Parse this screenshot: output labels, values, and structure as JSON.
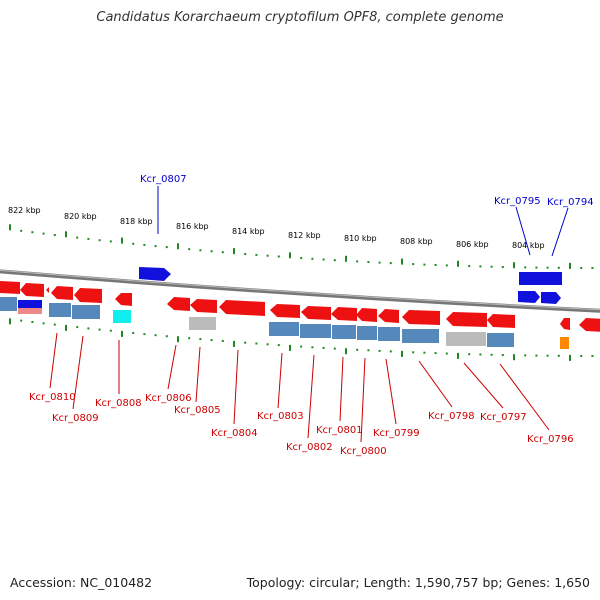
{
  "title": "Candidatus Korarchaeum cryptofilum OPF8, complete genome",
  "footer": {
    "accession": "Accession: NC_010482",
    "summary": "Topology: circular; Length: 1,590,757 bp; Genes: 1,650"
  },
  "colors": {
    "plus_label": "#0000cc",
    "minus_label": "#cc0000",
    "backbone": "#888888",
    "ticks": "#228822",
    "gene_red": "#ee1111",
    "gene_blue": "#1111dd",
    "rna_cyan": "#11eeee",
    "rna_orange": "#ff8800",
    "bar_blue": "#5588bb",
    "bar_grey": "#bbbbbb"
  },
  "scale_labels": [
    "822 kbp",
    "820 kbp",
    "818 kbp",
    "816 kbp",
    "814 kbp",
    "812 kbp",
    "810 kbp",
    "808 kbp",
    "806 kbp",
    "804 kbp"
  ],
  "plus_genes": [
    "Kcr_0807",
    "Kcr_0795",
    "Kcr_0794"
  ],
  "minus_genes": [
    "Kcr_0810",
    "Kcr_0809",
    "Kcr_0808",
    "Kcr_0806",
    "Kcr_0805",
    "Kcr_0804",
    "Kcr_0803",
    "Kcr_0802",
    "Kcr_0801",
    "Kcr_0800",
    "Kcr_0799",
    "Kcr_0798",
    "Kcr_0797",
    "Kcr_0796"
  ]
}
